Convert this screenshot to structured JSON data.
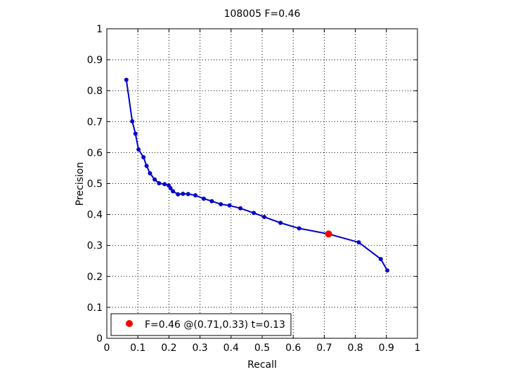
{
  "chart_data": {
    "type": "line",
    "title": "108005 F=0.46",
    "xlabel": "Recall",
    "ylabel": "Precision",
    "xlim": [
      0,
      1
    ],
    "ylim": [
      0,
      1
    ],
    "xticks": [
      "0",
      "0.1",
      "0.2",
      "0.3",
      "0.4",
      "0.5",
      "0.6",
      "0.7",
      "0.8",
      "0.9",
      "1"
    ],
    "yticks": [
      "0",
      "0.1",
      "0.2",
      "0.3",
      "0.4",
      "0.5",
      "0.6",
      "0.7",
      "0.8",
      "0.9",
      "1"
    ],
    "grid": true,
    "legend_position": "bottom-left",
    "series": [
      {
        "color": "#0000cc",
        "points": [
          [
            0.063,
            0.835
          ],
          [
            0.082,
            0.701
          ],
          [
            0.092,
            0.661
          ],
          [
            0.102,
            0.61
          ],
          [
            0.118,
            0.585
          ],
          [
            0.128,
            0.557
          ],
          [
            0.139,
            0.533
          ],
          [
            0.154,
            0.513
          ],
          [
            0.168,
            0.501
          ],
          [
            0.186,
            0.498
          ],
          [
            0.199,
            0.494
          ],
          [
            0.205,
            0.485
          ],
          [
            0.213,
            0.475
          ],
          [
            0.229,
            0.465
          ],
          [
            0.245,
            0.467
          ],
          [
            0.262,
            0.466
          ],
          [
            0.285,
            0.462
          ],
          [
            0.312,
            0.451
          ],
          [
            0.338,
            0.443
          ],
          [
            0.367,
            0.433
          ],
          [
            0.395,
            0.429
          ],
          [
            0.43,
            0.42
          ],
          [
            0.473,
            0.405
          ],
          [
            0.507,
            0.392
          ],
          [
            0.559,
            0.373
          ],
          [
            0.619,
            0.355
          ],
          [
            0.714,
            0.337
          ],
          [
            0.811,
            0.31
          ],
          [
            0.882,
            0.256
          ],
          [
            0.903,
            0.219
          ]
        ]
      }
    ],
    "best_point": {
      "recall": 0.71,
      "precision": 0.33,
      "color": "#ff0000",
      "label": "F=0.46 @(0.71,0.33) t=0.13"
    }
  }
}
